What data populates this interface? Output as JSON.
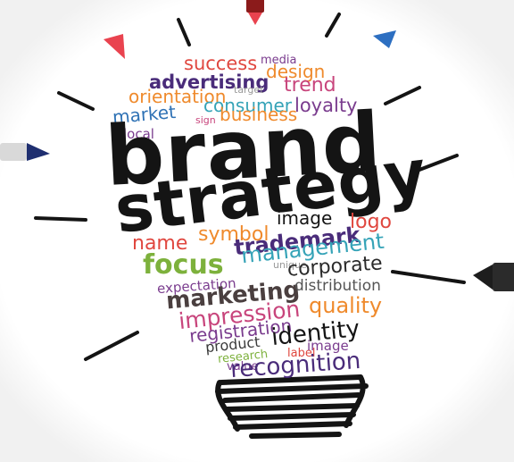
{
  "headline": {
    "line1": "brand",
    "line2": "strategy"
  },
  "colors": {
    "ink": "#141414",
    "red": "#e0473f",
    "orange": "#ef8a2c",
    "blue": "#2f72b5",
    "teal": "#35a3b7",
    "purple": "#7a3c8e",
    "green": "#7db13c",
    "magenta": "#c8457c",
    "gray": "#6b6b6b",
    "marker_red": "#e9434f",
    "marker_blue": "#2d6fc1",
    "marker_navy": "#1f2f70"
  },
  "words": {
    "success": "success",
    "media": "media",
    "advertising": "advertising",
    "design": "design",
    "orientation": "orientation",
    "target": "target",
    "trend": "trend",
    "market": "market",
    "consumer": "consumer",
    "loyalty": "loyalty",
    "sign": "sign",
    "business": "business",
    "local": "local",
    "name": "name",
    "symbol": "symbol",
    "image": "image",
    "trademark": "trademark",
    "logo": "logo",
    "focus": "focus",
    "management": "management",
    "unique": "unique",
    "expectation": "expectation",
    "corporate": "corporate",
    "marketing": "marketing",
    "distribution": "distribution",
    "impression": "impression",
    "quality": "quality",
    "registration": "registration",
    "product": "product",
    "identity": "identity",
    "research": "research",
    "label": "label",
    "image2": "image",
    "value": "value",
    "recognition": "recognition"
  }
}
